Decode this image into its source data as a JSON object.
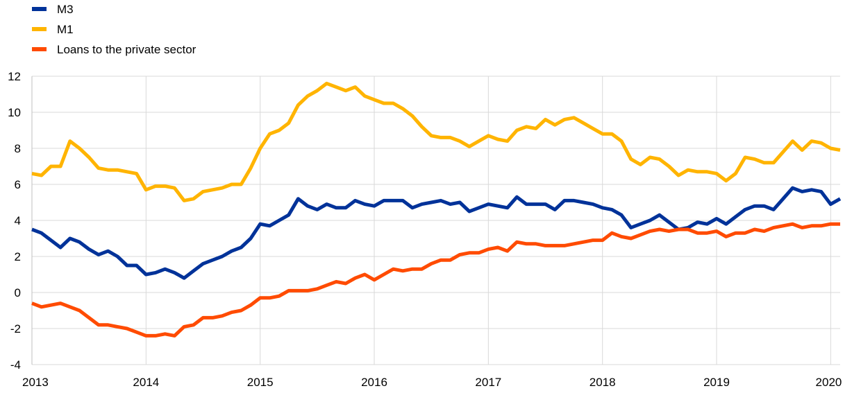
{
  "chart_data": {
    "type": "line",
    "title": "",
    "xlabel": "",
    "ylabel": "",
    "x_start": 2013.0,
    "x_step": 0.08333,
    "xlim": [
      2013.0,
      2020.083
    ],
    "ylim": [
      -4,
      12
    ],
    "y_ticks": [
      -4,
      -2,
      0,
      2,
      4,
      6,
      8,
      10,
      12
    ],
    "x_ticks": [
      2013,
      2014,
      2015,
      2016,
      2017,
      2018,
      2019,
      2020
    ],
    "grid": "horizontal",
    "legend_position": "top-left",
    "series": [
      {
        "name": "M3",
        "color": "#003299",
        "values": [
          3.5,
          3.3,
          2.9,
          2.5,
          3.0,
          2.8,
          2.4,
          2.1,
          2.3,
          2.0,
          1.5,
          1.5,
          1.0,
          1.1,
          1.3,
          1.1,
          0.8,
          1.2,
          1.6,
          1.8,
          2.0,
          2.3,
          2.5,
          3.0,
          3.8,
          3.7,
          4.0,
          4.3,
          5.2,
          4.8,
          4.6,
          4.9,
          4.7,
          4.7,
          5.1,
          4.9,
          4.8,
          5.1,
          5.1,
          5.1,
          4.7,
          4.9,
          5.0,
          5.1,
          4.9,
          5.0,
          4.5,
          4.7,
          4.9,
          4.8,
          4.7,
          5.3,
          4.9,
          4.9,
          4.9,
          4.6,
          5.1,
          5.1,
          5.0,
          4.9,
          4.7,
          4.6,
          4.3,
          3.6,
          3.8,
          4.0,
          4.3,
          3.9,
          3.5,
          3.6,
          3.9,
          3.8,
          4.1,
          3.8,
          4.2,
          4.6,
          4.8,
          4.8,
          4.6,
          5.2,
          5.8,
          5.6,
          5.7,
          5.6,
          4.9,
          5.2
        ]
      },
      {
        "name": "M1",
        "color": "#FFB400",
        "values": [
          6.6,
          6.5,
          7.0,
          7.0,
          8.4,
          8.0,
          7.5,
          6.9,
          6.8,
          6.8,
          6.7,
          6.6,
          5.7,
          5.9,
          5.9,
          5.8,
          5.1,
          5.2,
          5.6,
          5.7,
          5.8,
          6.0,
          6.0,
          6.9,
          8.0,
          8.8,
          9.0,
          9.4,
          10.4,
          10.9,
          11.2,
          11.6,
          11.4,
          11.2,
          11.4,
          10.9,
          10.7,
          10.5,
          10.5,
          10.2,
          9.8,
          9.2,
          8.7,
          8.6,
          8.6,
          8.4,
          8.1,
          8.4,
          8.7,
          8.5,
          8.4,
          9.0,
          9.2,
          9.1,
          9.6,
          9.3,
          9.6,
          9.7,
          9.4,
          9.1,
          8.8,
          8.8,
          8.4,
          7.4,
          7.1,
          7.5,
          7.4,
          7.0,
          6.5,
          6.8,
          6.7,
          6.7,
          6.6,
          6.2,
          6.6,
          7.5,
          7.4,
          7.2,
          7.2,
          7.8,
          8.4,
          7.9,
          8.4,
          8.3,
          8.0,
          7.9
        ]
      },
      {
        "name": "Loans to the private sector",
        "color": "#FF4B00",
        "values": [
          -0.6,
          -0.8,
          -0.7,
          -0.6,
          -0.8,
          -1.0,
          -1.4,
          -1.8,
          -1.8,
          -1.9,
          -2.0,
          -2.2,
          -2.4,
          -2.4,
          -2.3,
          -2.4,
          -1.9,
          -1.8,
          -1.4,
          -1.4,
          -1.3,
          -1.1,
          -1.0,
          -0.7,
          -0.3,
          -0.3,
          -0.2,
          0.1,
          0.1,
          0.1,
          0.2,
          0.4,
          0.6,
          0.5,
          0.8,
          1.0,
          0.7,
          1.0,
          1.3,
          1.2,
          1.3,
          1.3,
          1.6,
          1.8,
          1.8,
          2.1,
          2.2,
          2.2,
          2.4,
          2.5,
          2.3,
          2.8,
          2.7,
          2.7,
          2.6,
          2.6,
          2.6,
          2.7,
          2.8,
          2.9,
          2.9,
          3.3,
          3.1,
          3.0,
          3.2,
          3.4,
          3.5,
          3.4,
          3.5,
          3.5,
          3.3,
          3.3,
          3.4,
          3.1,
          3.3,
          3.3,
          3.5,
          3.4,
          3.6,
          3.7,
          3.8,
          3.6,
          3.7,
          3.7,
          3.8,
          3.8
        ]
      }
    ]
  }
}
